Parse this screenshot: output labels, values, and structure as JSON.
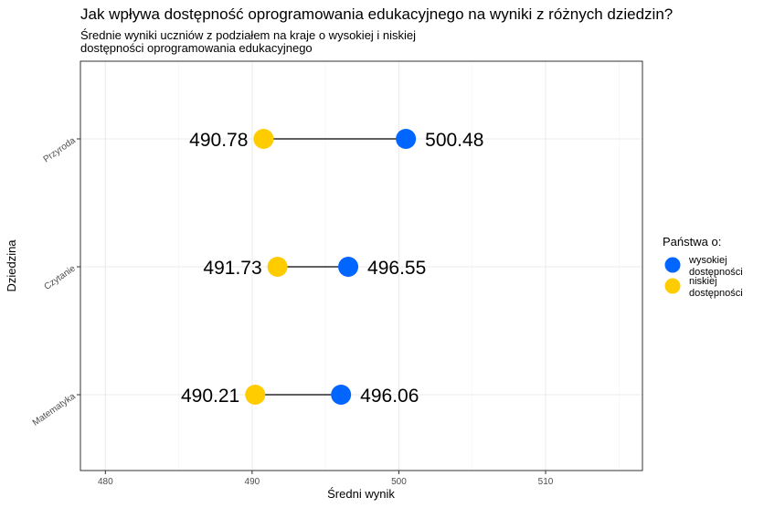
{
  "chart_data": {
    "type": "dumbbell",
    "title": "Jak wpływa dostępność oprogramowania edukacyjnego na wyniki z różnych dziedzin?",
    "subtitle_lines": [
      "Średnie wyniki uczniów z podziałem na kraje o wysokiej i niskiej",
      "dostępności oprogramowania edukacyjnego"
    ],
    "xlabel": "Średni wynik",
    "ylabel": "Dziedzina",
    "xlim": [
      478.3,
      516.6
    ],
    "x_ticks": [
      480,
      490,
      500,
      510
    ],
    "grid": true,
    "categories": [
      "Przyroda",
      "Czytanie",
      "Matematyka"
    ],
    "series": [
      {
        "name": "wysokiej dostępności",
        "name_lines": [
          "wysokiej",
          "dostępności"
        ],
        "color": "#0066ff",
        "values": [
          500.48,
          496.55,
          496.06
        ],
        "labels": [
          "500.48",
          "496.55",
          "496.06"
        ]
      },
      {
        "name": "niskiej dostępności",
        "name_lines": [
          "niskiej",
          "dostępności"
        ],
        "color": "#ffcc00",
        "values": [
          490.78,
          491.73,
          490.21
        ],
        "labels": [
          "490.78",
          "491.73",
          "490.21"
        ]
      }
    ],
    "legend": {
      "title": "Państwa o:",
      "position": "right"
    }
  }
}
